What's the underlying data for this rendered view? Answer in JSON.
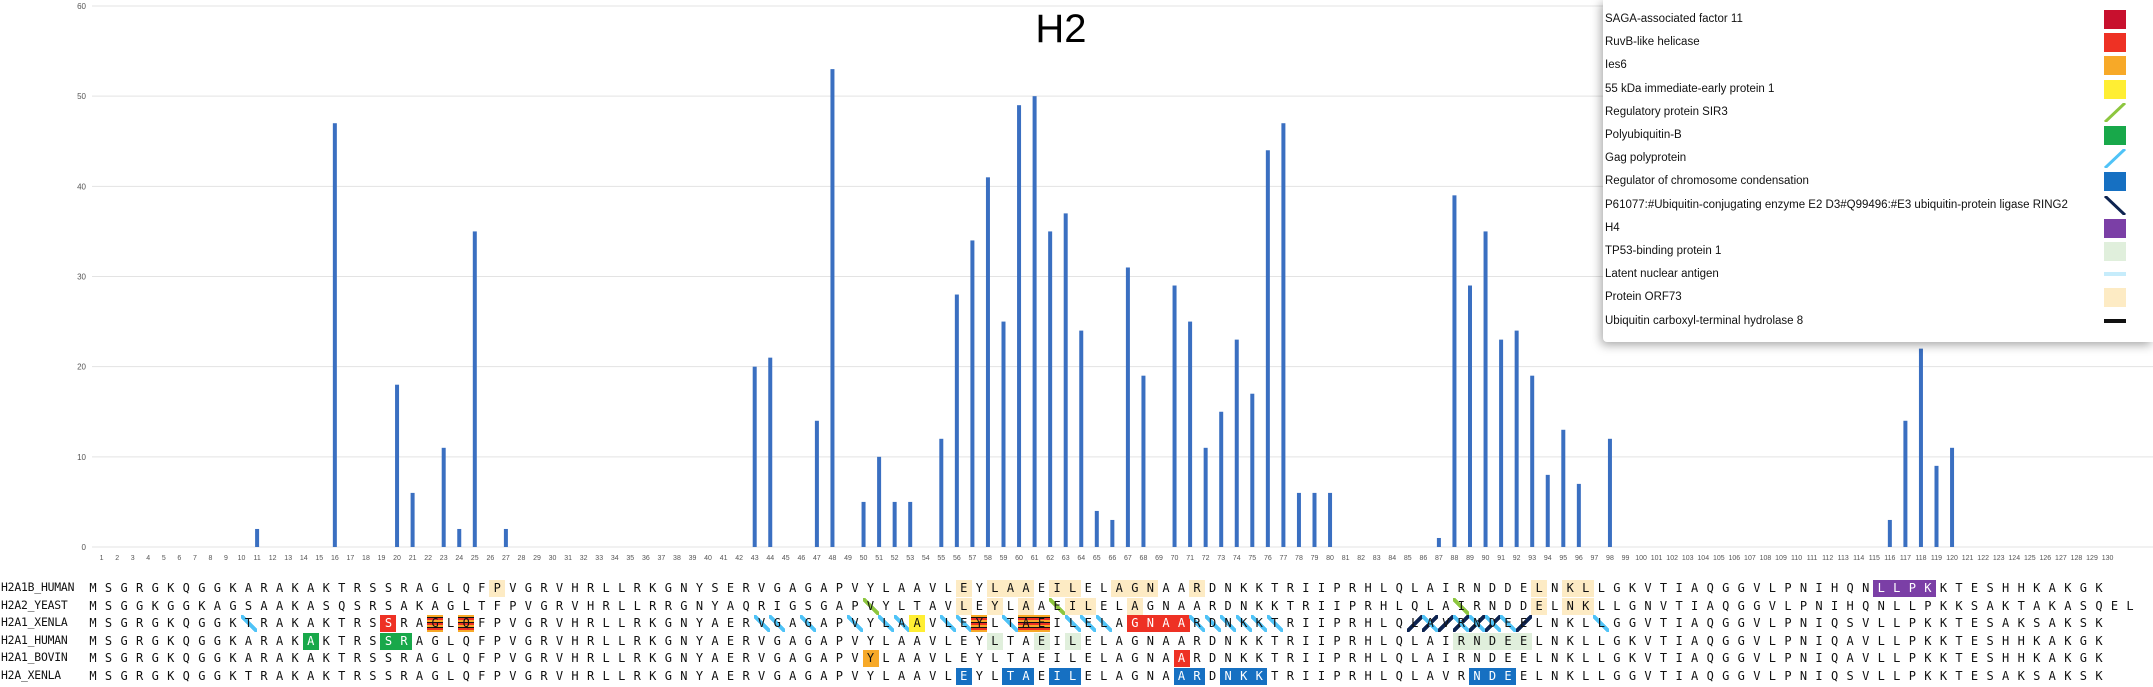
{
  "chart_data": {
    "type": "bar",
    "title": "H2",
    "x_categories": [
      1,
      2,
      3,
      4,
      5,
      6,
      7,
      8,
      9,
      10,
      11,
      12,
      13,
      14,
      15,
      16,
      17,
      18,
      19,
      20,
      21,
      22,
      23,
      24,
      25,
      26,
      27,
      28,
      29,
      30,
      31,
      32,
      33,
      34,
      35,
      36,
      37,
      38,
      39,
      40,
      41,
      42,
      43,
      44,
      45,
      46,
      47,
      48,
      49,
      50,
      51,
      52,
      53,
      54,
      55,
      56,
      57,
      58,
      59,
      60,
      61,
      62,
      63,
      64,
      65,
      66,
      67,
      68,
      69,
      70,
      71,
      72,
      73,
      74,
      75,
      76,
      77,
      78,
      79,
      80,
      81,
      82,
      83,
      84,
      85,
      86,
      87,
      88,
      89,
      90,
      91,
      92,
      93,
      94,
      95,
      96,
      97,
      98,
      99,
      100,
      101,
      102,
      103,
      104,
      105,
      106,
      107,
      108,
      109,
      110,
      111,
      112,
      113,
      114,
      115,
      116,
      117,
      118,
      119,
      120,
      121,
      122,
      123,
      124,
      125,
      126,
      127,
      128,
      129,
      130
    ],
    "values": [
      0,
      0,
      0,
      0,
      0,
      0,
      0,
      0,
      0,
      0,
      2,
      0,
      0,
      0,
      0,
      47,
      0,
      0,
      0,
      18,
      6,
      0,
      11,
      2,
      35,
      0,
      2,
      0,
      0,
      0,
      0,
      0,
      0,
      0,
      0,
      0,
      0,
      0,
      0,
      0,
      0,
      0,
      20,
      21,
      0,
      0,
      14,
      53,
      0,
      5,
      10,
      5,
      5,
      0,
      12,
      28,
      34,
      41,
      25,
      49,
      50,
      35,
      37,
      24,
      4,
      3,
      31,
      19,
      0,
      29,
      25,
      11,
      15,
      23,
      17,
      44,
      47,
      6,
      6,
      6,
      0,
      0,
      0,
      0,
      0,
      0,
      1,
      39,
      29,
      35,
      23,
      24,
      19,
      8,
      13,
      7,
      0,
      12,
      0,
      0,
      0,
      0,
      0,
      0,
      0,
      0,
      0,
      0,
      0,
      0,
      0,
      0,
      0,
      0,
      0,
      3,
      14,
      22,
      9,
      11,
      0,
      0,
      0,
      0,
      0,
      0,
      0,
      0,
      0,
      0
    ],
    "y_ticks": [
      0,
      10,
      20,
      30,
      40,
      50,
      60
    ],
    "ylim": [
      0,
      60
    ],
    "grid": true,
    "bar_color": "#3a6fc1",
    "legend_position": "top-right"
  },
  "legend": [
    {
      "label": "SAGA-associated factor 11",
      "color": "#c8102e",
      "style": "box"
    },
    {
      "label": "RuvB-like helicase",
      "color": "#ee3124",
      "style": "box"
    },
    {
      "label": "Ies6",
      "color": "#f7a928",
      "style": "box"
    },
    {
      "label": "55 kDa immediate-early protein 1",
      "color": "#ffee33",
      "style": "box"
    },
    {
      "label": "Regulatory protein SIR3",
      "color": "#8dc63f",
      "style": "slash"
    },
    {
      "label": "Polyubiquitin-B",
      "color": "#18a84a",
      "style": "box"
    },
    {
      "label": "Gag polyprotein",
      "color": "#4fc3f7",
      "style": "slash"
    },
    {
      "label": "Regulator of chromosome condensation",
      "color": "#1670c2",
      "style": "box"
    },
    {
      "label": "P61077:#Ubiquitin-conjugating enzyme E2 D3#Q99496:#E3 ubiquitin-protein ligase RING2",
      "color": "#0d2350",
      "style": "slash"
    },
    {
      "label": "H4",
      "color": "#7b3fa6",
      "style": "box"
    },
    {
      "label": "TP53-binding protein 1",
      "color": "#e0efdc",
      "style": "box"
    },
    {
      "label": "Latent nuclear antigen",
      "color": "#c6ecfb",
      "style": "line"
    },
    {
      "label": "Protein ORF73",
      "color": "#fdebc4",
      "style": "box"
    },
    {
      "label": "Ubiquitin carboxyl-terminal hydrolase 8",
      "color": "#111111",
      "style": "line"
    }
  ],
  "alignment": [
    {
      "name": "H2A1B_HUMAN",
      "seq": "MSGRGKQGGKARAKAKTRSSRAGLQFPVGRVHRLLRKGNYSERVGAGAPVYLAAVLEYLAAEILELAGNAARDNKKTRIIPRHLQLAIRNDDELNKLLGKVTIAQGGVLPNIHQNLLPKKTESHHKAKGK"
    },
    {
      "name": "H2A2_YEAST",
      "seq": "MSGGKGGKAGSAAKASQSRSAKAGLTFPVGRVHRLLRRGNYAQRIGSGAPVYLTAVLEYLAAEILELAGNAARDNKKTRIIPRHLQLAIRNDDELNKLLGNVTIAQGGVLPNIHQNLLPKKSAKTAKASQEL"
    },
    {
      "name": "H2A1_XENLA",
      "seq": "MSGRGKQGGKTRAKAKTRSSRAGLQFPVGRVHRLLRKGNYAERVGAGAPVYLAAVLEYLTAEILELAGNAARDNKKTRIIPRHLQLAVRNDEELNKLLGGVTIAQGGVLPNIQSVLLPKKTESAKSAKSK"
    },
    {
      "name": "H2A1_HUMAN",
      "seq": "MSGRGKQGGKARAKAKTRSSRAGLQFPVGRVHRLLRKGNYAERVGAGAPVYLAAVLEYLTAEILELAGNAARDNKKTRIIPRHLQLAIRNDEELNKLLGKVTIAQGGVLPNIQAVLLPKKTESHHKAKGK"
    },
    {
      "name": "H2A1_BOVIN",
      "seq": "MSGRGKQGGKARAKAKTRSSRAGLQFPVGRVHRLLRKGNYAERVGAGAPVYLAAVLEYLTAEILELAGNAARDNKKTRIIPRHLQLAIRNDEELNKLLGKVTIAQGGVLPNIQAVLLPKKTESHHKAKGK"
    },
    {
      "name": "H2A_XENLA",
      "seq": "MSGRGKQGGKTRAKAKTRSSRAGLQFPVGRVHRLLRKGNYAERVGAGAPVYLAAVLEYLTAEILELAGNAARDNKKTRIIPRHLQLAVRNDEELNKLLGGVTIAQGGVLPNIQSVLLPKKTESAKSAKSK"
    }
  ],
  "highlights": [
    {
      "row": 0,
      "cols": [
        27
      ],
      "color": "#fdebc4",
      "style": "box"
    },
    {
      "row": 0,
      "cols": [
        57,
        59,
        60,
        61,
        63,
        64,
        67,
        68,
        69,
        72
      ],
      "color": "#fdebc4",
      "style": "box"
    },
    {
      "row": 0,
      "cols": [
        94,
        96,
        97
      ],
      "color": "#fdebc4",
      "style": "box"
    },
    {
      "row": 0,
      "cols": [
        116,
        117,
        118,
        119
      ],
      "color": "#7b3fa6",
      "style": "box"
    },
    {
      "row": 1,
      "cols": [
        51,
        57,
        59,
        61,
        63,
        64,
        89
      ],
      "color": "#8dc63f",
      "style": "slash"
    },
    {
      "row": 1,
      "cols": [
        57,
        59,
        61,
        64,
        65,
        68,
        94,
        96,
        97
      ],
      "color": "#fdebc4",
      "style": "box"
    },
    {
      "row": 2,
      "cols": [
        11,
        44,
        45,
        47,
        50,
        52,
        53,
        56,
        57,
        58,
        60,
        62,
        64,
        65,
        66,
        72,
        73,
        74,
        75,
        76,
        77,
        87,
        89,
        90,
        91,
        92,
        98
      ],
      "color": "#4fc3f7",
      "style": "slash"
    },
    {
      "row": 2,
      "cols": [
        20
      ],
      "color": "#ee3124",
      "style": "box"
    },
    {
      "row": 2,
      "cols": [
        23,
        25,
        58,
        61,
        62
      ],
      "color": "#f7a928",
      "style": "stripe"
    },
    {
      "row": 2,
      "cols": [
        54
      ],
      "color": "#ffee33",
      "style": "box"
    },
    {
      "row": 2,
      "cols": [
        68,
        69,
        70,
        71
      ],
      "color": "#ee3124",
      "style": "box"
    },
    {
      "row": 2,
      "cols": [
        86,
        87,
        88,
        89,
        90,
        91,
        93
      ],
      "color": "#0d2350",
      "style": "slash"
    },
    {
      "row": 3,
      "cols": [
        15
      ],
      "color": "#18a84a",
      "style": "box"
    },
    {
      "row": 3,
      "cols": [
        20,
        21
      ],
      "color": "#18a84a",
      "style": "box"
    },
    {
      "row": 3,
      "cols": [
        59,
        62,
        64
      ],
      "color": "#e0efdc",
      "style": "box"
    },
    {
      "row": 3,
      "cols": [
        89,
        90,
        91,
        92,
        93
      ],
      "color": "#e0efdc",
      "style": "box"
    },
    {
      "row": 4,
      "cols": [
        51
      ],
      "color": "#f7a928",
      "style": "box"
    },
    {
      "row": 4,
      "cols": [
        71
      ],
      "color": "#ee3124",
      "style": "box"
    },
    {
      "row": 5,
      "cols": [
        57,
        60,
        61,
        63,
        64,
        71,
        72,
        74,
        75,
        76,
        90,
        91,
        92
      ],
      "color": "#1670c2",
      "style": "box"
    }
  ]
}
